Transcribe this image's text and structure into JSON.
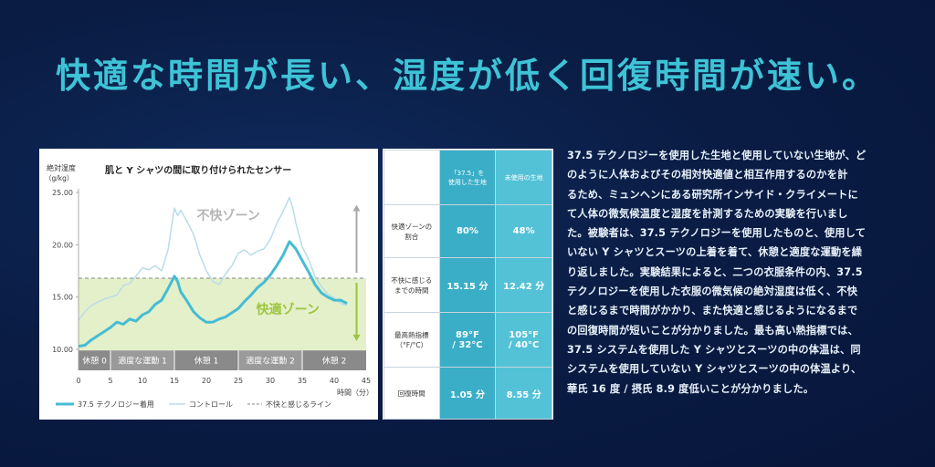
{
  "headline": "快適な時間が長い、湿度が低く回復時間が速い。",
  "chart_data": {
    "type": "line",
    "title": "肌と Y シャツの間に取り付けられたセンサー",
    "ylabel_line1": "絶対湿度",
    "ylabel_line2": "（g/kg）",
    "xlabel": "時間（分）",
    "xlim": [
      0,
      45
    ],
    "ylim": [
      8,
      25
    ],
    "xticks": [
      0,
      5,
      10,
      15,
      20,
      25,
      30,
      35,
      40,
      45
    ],
    "yticks": [
      10,
      15,
      20,
      25
    ],
    "ytick_labels": [
      "10.00",
      "15.00",
      "20.00",
      "25.00"
    ],
    "threshold": 16.8,
    "phases": [
      {
        "label": "休憩 0",
        "start": 0,
        "end": 5
      },
      {
        "label": "適度な運動 1",
        "start": 5,
        "end": 15
      },
      {
        "label": "休憩 1",
        "start": 15,
        "end": 25
      },
      {
        "label": "適度な運動 2",
        "start": 25,
        "end": 35
      },
      {
        "label": "休憩 2",
        "start": 35,
        "end": 45
      }
    ],
    "zone_uncomfortable": "不快ゾーン",
    "zone_comfortable": "快適ゾーン",
    "series": [
      {
        "name": "37.5 テクノロジー着用",
        "color": "#46bcd3",
        "x": [
          0,
          1,
          2,
          3,
          4,
          5,
          6,
          7,
          8,
          9,
          10,
          11,
          12,
          13,
          14,
          15,
          15.5,
          16,
          17,
          18,
          19,
          20,
          21,
          22,
          23,
          24,
          25,
          26,
          27,
          28,
          29,
          30,
          31,
          32,
          33,
          34,
          35,
          36,
          37,
          38,
          39,
          40,
          41,
          42
        ],
        "y": [
          10.3,
          10.4,
          10.9,
          11.3,
          11.7,
          12.1,
          12.6,
          12.4,
          12.9,
          12.7,
          13.3,
          13.6,
          14.3,
          14.7,
          15.8,
          17.0,
          16.5,
          15.5,
          14.6,
          13.6,
          13.0,
          12.6,
          12.6,
          12.9,
          13.1,
          13.5,
          13.9,
          14.6,
          15.2,
          15.9,
          16.4,
          17.1,
          18.0,
          19.0,
          20.3,
          19.6,
          18.5,
          17.4,
          16.2,
          15.4,
          15.0,
          14.7,
          14.7,
          14.4
        ]
      },
      {
        "name": "コントロール",
        "color": "#b9dde8",
        "x": [
          0,
          1,
          2,
          3,
          4,
          5,
          6,
          7,
          8,
          9,
          10,
          11,
          12,
          13,
          14,
          15,
          15.5,
          16,
          17,
          18,
          19,
          20,
          21,
          22,
          23,
          24,
          25,
          26,
          27,
          28,
          29,
          30,
          31,
          32,
          33,
          33.5,
          34,
          35,
          36,
          37,
          38,
          39,
          40,
          41,
          42
        ],
        "y": [
          12.8,
          13.6,
          14.2,
          14.5,
          14.8,
          15.0,
          15.2,
          16.1,
          16.3,
          17.0,
          17.8,
          17.6,
          18.0,
          17.5,
          19.5,
          23.5,
          22.8,
          23.3,
          22.2,
          21.0,
          19.0,
          17.5,
          16.5,
          16.2,
          17.2,
          18.0,
          19.2,
          19.5,
          19.0,
          19.4,
          19.6,
          20.5,
          22.0,
          23.2,
          24.5,
          23.6,
          22.1,
          19.8,
          18.6,
          17.0,
          16.0,
          15.3,
          14.9,
          14.4,
          14.2
        ]
      },
      {
        "name": "不快と感じるライン",
        "color": "#8e8e8e"
      }
    ]
  },
  "table": {
    "col1_header_line1": "「37.5」を",
    "col1_header_line2": "使用した生地",
    "col2_header": "未使用の生地",
    "rows": [
      {
        "label_line1": "快適ゾーンの",
        "label_line2": "割合",
        "v1": "80%",
        "v2": "48%"
      },
      {
        "label_line1": "不快に感じる",
        "label_line2": "までの時間",
        "v1": "15.15 分",
        "v2": "12.42 分"
      },
      {
        "label_line1": "最高熱指標",
        "label_line2": "（°F/°C）",
        "v1_line1": "89°F",
        "v1_line2": "/ 32°C",
        "v2_line1": "105°F",
        "v2_line2": "/ 40°C"
      },
      {
        "label_line1": "回復時間",
        "label_line2": "",
        "v1": "1.05 分",
        "v2": "8.55 分"
      }
    ]
  },
  "body_lines": [
    "37.5 テクノロジーを使用した生地と使用していない生地が、ど",
    "のように人体およびその相対快適値と相互作用するのかを計",
    "るため、ミュンヘンにある研究所インサイド・クライメートに",
    "て人体の微気候温度と湿度を計測するための実験を行いまし",
    "た。被験者は、37.5 テクノロジーを使用したものと、使用して",
    "いない Y シャツとスーツの上着を着て、休憩と適度な運動を繰",
    "り返しました。実験結果によると、二つの衣服条件の内、37.5",
    "テクノロジーを使用した衣服の微気候の絶対湿度は低く、不快",
    "と感じるまで時間がかかり、また快適と感じるようになるまで",
    "の回復時間が短いことが分かりました。最も高い熱指標では、",
    "37.5 システムを使用した Y シャツとスーツの中の体温は、同",
    "システムを使用していない Y シャツとスーツの中の体温より、",
    "華氏 16 度 / 摂氏 8.9 度低いことが分かりました。"
  ],
  "colors": {
    "accent": "#3ec3d6",
    "comfort_zone": "#e3f0c9",
    "comfort_text": "#9bc53d",
    "phase_band": "#8b8b8b"
  }
}
